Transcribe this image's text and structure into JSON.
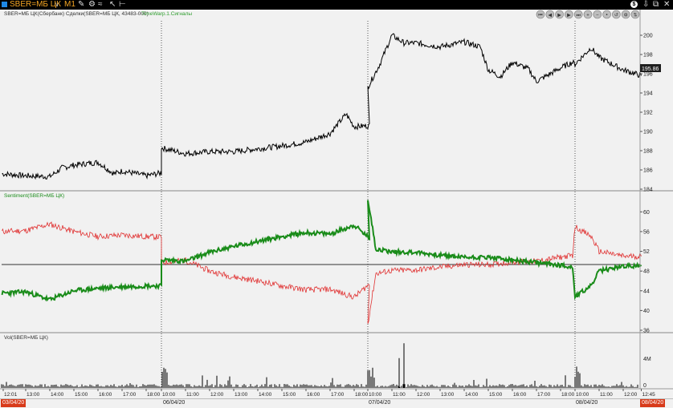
{
  "titlebar": {
    "symbol": "SBER=МБ ЦК",
    "timeframe": "M1",
    "icons": [
      "dropdown-chevron-icon",
      "pencil-icon",
      "chart-style-icon",
      "cursor-icon",
      "crosshair-icon",
      "dollar-icon",
      "pin-icon",
      "restore-icon",
      "close-icon"
    ]
  },
  "panel_labels": {
    "price_series": "SBER=МБ ЦК(Сбербанк)",
    "trades": "Сделки(SBER=МБ ЦК, 43483-000)",
    "signal": "TimeWarp.1.Сигналы",
    "sentiment": "Sentiment(SBER=МБ ЦК)",
    "volume": "Vol(SBER=МБ ЦК)"
  },
  "nav_buttons": [
    "first-icon",
    "prev-icon",
    "play-icon",
    "next-icon",
    "last-icon",
    "zoom-in-icon",
    "zoom-out-icon",
    "fit-icon",
    "reset-icon",
    "config-icon",
    "scale-icon"
  ],
  "price_axis": {
    "ticks": [
      "200",
      "198",
      "196",
      "194",
      "192",
      "190",
      "188",
      "186",
      "184"
    ],
    "last_price": "195.86"
  },
  "sentiment_axis": {
    "ticks": [
      "60",
      "56",
      "52",
      "48",
      "44",
      "40",
      "36"
    ]
  },
  "volume_axis": {
    "ticks": [
      "4M",
      "0"
    ]
  },
  "time_axis": [
    "12:01",
    "13:00",
    "14:00",
    "15:00",
    "16:00",
    "17:00",
    "18:00",
    "10:00",
    "11:00",
    "12:00",
    "13:00",
    "14:00",
    "15:00",
    "16:00",
    "17:00",
    "18:00",
    "10:00",
    "11:00",
    "12:00",
    "13:00",
    "14:00",
    "15:00",
    "16:00",
    "17:00",
    "18:00",
    "10:00",
    "11:00",
    "12:00",
    "12:45"
  ],
  "date_bar": {
    "start": "03/04/20",
    "labels": [
      "06/04/20",
      "07/04/20",
      "08/04/20"
    ],
    "end": "08/04/20"
  },
  "colors": {
    "price": "#000000",
    "sentiment_red": "#e03030",
    "sentiment_green": "#1a8c1a",
    "signal_text": "#2e9e2e",
    "symbol_orange": "#f5a623",
    "symbol_box": "#1e88e5",
    "last_price_bg": "#1e1e1e",
    "date_end_bg": "#d83a1a"
  },
  "chart_data": [
    {
      "type": "line",
      "name_label": "SBER=МБ ЦК(Сбербанк)",
      "x_sessions": [
        "03/04/20",
        "06/04/20",
        "07/04/20",
        "08/04/20"
      ],
      "ylim": [
        184,
        201
      ],
      "series": [
        {
          "name": "SBER=МБ ЦК(Сбербанк)",
          "x": [
            "12:01",
            "13:00",
            "14:00",
            "14:30",
            "15:00",
            "16:00",
            "16:40",
            "17:00",
            "18:00",
            "18:40",
            "10:00",
            "11:00",
            "12:00",
            "13:00",
            "14:00",
            "15:00",
            "16:00",
            "17:00",
            "17:40",
            "18:00",
            "18:40",
            "10:00",
            "10:30",
            "11:00",
            "11:30",
            "12:00",
            "13:00",
            "14:00",
            "14:40",
            "15:00",
            "15:30",
            "16:00",
            "16:40",
            "17:00",
            "18:00",
            "18:30",
            "10:00",
            "10:40",
            "11:00",
            "12:00",
            "12:45"
          ],
          "values": [
            185.6,
            185.4,
            185.3,
            186.2,
            186.5,
            186.8,
            185.6,
            185.9,
            185.4,
            185.7,
            188.3,
            187.7,
            187.9,
            187.9,
            188.2,
            188.5,
            188.9,
            189.8,
            191.8,
            190.5,
            190.6,
            194.6,
            197.0,
            200.0,
            199.2,
            199.2,
            198.8,
            199.3,
            198.8,
            196.4,
            195.7,
            197.2,
            196.5,
            195.2,
            196.6,
            197.2,
            197.0,
            198.7,
            197.7,
            196.4,
            195.8
          ]
        }
      ]
    },
    {
      "type": "line",
      "name_label": "Sentiment(SBER=МБ ЦК)",
      "ylim": [
        36,
        62
      ],
      "reference_line": 50,
      "series": [
        {
          "x": [
            "12:01",
            "13:00",
            "14:00",
            "15:00",
            "16:00",
            "17:00",
            "18:00",
            "18:40",
            "10:00",
            "11:00",
            "12:00",
            "13:00",
            "14:00",
            "15:00",
            "16:00",
            "17:00",
            "18:00",
            "18:40",
            "10:00",
            "10:20",
            "11:00",
            "12:00",
            "13:00",
            "14:00",
            "15:00",
            "16:00",
            "17:00",
            "18:00",
            "18:30",
            "10:00",
            "10:40",
            "11:00",
            "12:00",
            "12:45"
          ],
          "values": [
            56.0,
            56.2,
            57.5,
            56.0,
            55.0,
            55.3,
            55.0,
            54.9,
            49.7,
            50.2,
            48.0,
            46.8,
            46.0,
            45.0,
            44.2,
            44.3,
            42.7,
            45.5,
            37.3,
            47.5,
            48.1,
            48.2,
            48.8,
            49.3,
            49.3,
            49.8,
            50.0,
            50.8,
            51.2,
            57.0,
            55.0,
            52.0,
            51.0,
            51.0
          ]
        },
        {
          "x": [
            "12:01",
            "13:00",
            "14:00",
            "15:00",
            "16:00",
            "17:00",
            "18:00",
            "18:40",
            "10:00",
            "11:00",
            "12:00",
            "13:00",
            "14:00",
            "15:00",
            "16:00",
            "17:00",
            "18:00",
            "18:40",
            "10:00",
            "10:20",
            "11:00",
            "12:00",
            "13:00",
            "14:00",
            "15:00",
            "16:00",
            "17:00",
            "18:00",
            "18:30",
            "10:00",
            "10:40",
            "11:00",
            "12:00",
            "12:45"
          ],
          "values": [
            43.5,
            43.8,
            42.2,
            44.0,
            44.5,
            44.8,
            45.0,
            45.0,
            50.3,
            50.0,
            51.8,
            53.0,
            54.0,
            55.0,
            55.8,
            55.5,
            57.3,
            54.5,
            62.7,
            52.5,
            51.9,
            51.8,
            51.2,
            50.8,
            50.8,
            50.2,
            49.7,
            49.2,
            48.8,
            42.8,
            45.0,
            48.0,
            49.0,
            49.0
          ]
        }
      ]
    },
    {
      "type": "bar",
      "name_label": "Vol(SBER=МБ ЦК)",
      "ylim": [
        0,
        5
      ],
      "unit": "M",
      "peak_values": [
        {
          "x": "07/04/20 11:30",
          "value": 4.5
        },
        {
          "x": "07/04/20 11:00",
          "value": 3.0
        }
      ]
    }
  ]
}
